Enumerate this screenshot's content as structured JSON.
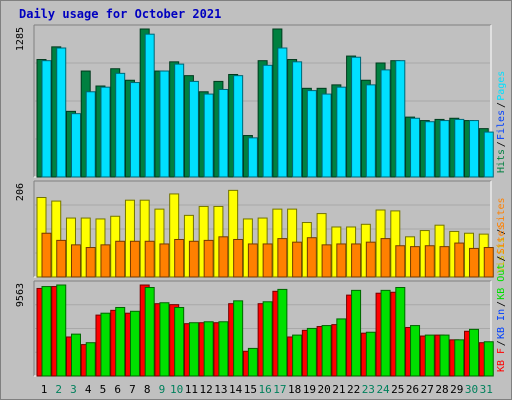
{
  "chart_data": {
    "type": "bar",
    "title": "Daily usage for October 2021",
    "categories": [
      "1",
      "2",
      "3",
      "4",
      "5",
      "6",
      "7",
      "8",
      "9",
      "10",
      "11",
      "12",
      "13",
      "14",
      "15",
      "16",
      "17",
      "18",
      "19",
      "20",
      "21",
      "22",
      "23",
      "24",
      "25",
      "26",
      "27",
      "28",
      "29",
      "30",
      "31"
    ],
    "weekend_days": [
      2,
      3,
      9,
      10,
      16,
      17,
      23,
      24,
      30,
      31
    ],
    "colors": {
      "hits": "#008040",
      "files": "#0040ff",
      "pages": "#00e0ff",
      "visits": "#ffff00",
      "sites": "#ff8000",
      "kb_in": "#00e000",
      "kb_out": "#ff0000",
      "weekday_label": "#000000",
      "weekend_label": "#00805c"
    },
    "panels": [
      {
        "id": "hits-files-pages",
        "max_label": "1285",
        "ylim": [
          0,
          1285
        ],
        "legend": [
          {
            "label": "Hits",
            "color_key": "hits"
          },
          {
            "label": "/",
            "color_key": "slash"
          },
          {
            "label": "Files",
            "color_key": "files"
          },
          {
            "label": "/",
            "color_key": "slash"
          },
          {
            "label": "Pages",
            "color_key": "pages"
          }
        ],
        "series": [
          {
            "name": "Hits",
            "color": "#008040",
            "values": [
              1020,
              1130,
              570,
              920,
              790,
              940,
              840,
              1285,
              920,
              1000,
              880,
              740,
              830,
              890,
              360,
              1010,
              1285,
              1020,
              770,
              770,
              800,
              1050,
              840,
              990,
              1010,
              520,
              490,
              500,
              510,
              490,
              420
            ]
          },
          {
            "name": "Pages",
            "color": "#00e0ff",
            "values": [
              1010,
              1120,
              550,
              740,
              780,
              900,
              820,
              1240,
              920,
              980,
              830,
              720,
              760,
              880,
              340,
              970,
              1120,
              1000,
              750,
              720,
              780,
              1040,
              800,
              930,
              1010,
              510,
              480,
              490,
              500,
              490,
              390
            ]
          }
        ]
      },
      {
        "id": "visits-sites",
        "max_label": "206",
        "ylim": [
          0,
          206
        ],
        "legend": [
          {
            "label": "Visits",
            "color_key": "visits"
          },
          {
            "label": "/",
            "color_key": "slash"
          },
          {
            "label": "Sites",
            "color_key": "sites"
          }
        ],
        "series": [
          {
            "name": "Visits",
            "color": "#ffff00",
            "values": [
              178,
              170,
              132,
              132,
              130,
              136,
              172,
              172,
              152,
              186,
              138,
              158,
              158,
              194,
              130,
              132,
              152,
              152,
              122,
              142,
              112,
              112,
              118,
              150,
              148,
              90,
              104,
              116,
              102,
              98,
              96
            ]
          },
          {
            "name": "Sites",
            "color": "#ff8000",
            "values": [
              98,
              82,
              72,
              66,
              72,
              80,
              80,
              80,
              74,
              84,
              80,
              82,
              90,
              84,
              74,
              74,
              86,
              78,
              88,
              72,
              74,
              74,
              78,
              86,
              70,
              68,
              70,
              68,
              76,
              64,
              66
            ]
          }
        ]
      },
      {
        "id": "kbout-kbin",
        "max_label": "9563",
        "ylim": [
          0,
          9563
        ],
        "legend": [
          {
            "label": "KB F",
            "color_key": "kb_out"
          },
          {
            "label": "/",
            "color_key": "slash"
          },
          {
            "label": "KB In",
            "color_key": "files"
          },
          {
            "label": "/",
            "color_key": "slash"
          },
          {
            "label": "KB Out",
            "color_key": "kb_in"
          },
          {
            "label": "/",
            "color_key": "slash"
          },
          {
            "label": "Sites",
            "color_key": "sites"
          }
        ],
        "series": [
          {
            "name": "KB F",
            "color": "#ff0000",
            "values": [
              9200,
              9400,
              4100,
              3300,
              6400,
              6900,
              6600,
              9563,
              7600,
              7500,
              5500,
              5600,
              5600,
              7600,
              2600,
              7600,
              8900,
              4100,
              4800,
              5200,
              5400,
              8500,
              4500,
              8700,
              8800,
              5100,
              4200,
              4300,
              3800,
              4700,
              3500
            ]
          },
          {
            "name": "KB In",
            "color": "#00e000",
            "values": [
              9400,
              9563,
              4400,
              3500,
              6600,
              7200,
              6800,
              9300,
              7700,
              7200,
              5600,
              5700,
              5700,
              7900,
              2900,
              7800,
              9100,
              4300,
              5000,
              5300,
              6000,
              9000,
              4600,
              9000,
              9300,
              5300,
              4300,
              4300,
              3800,
              4900,
              3600
            ]
          }
        ]
      }
    ]
  }
}
